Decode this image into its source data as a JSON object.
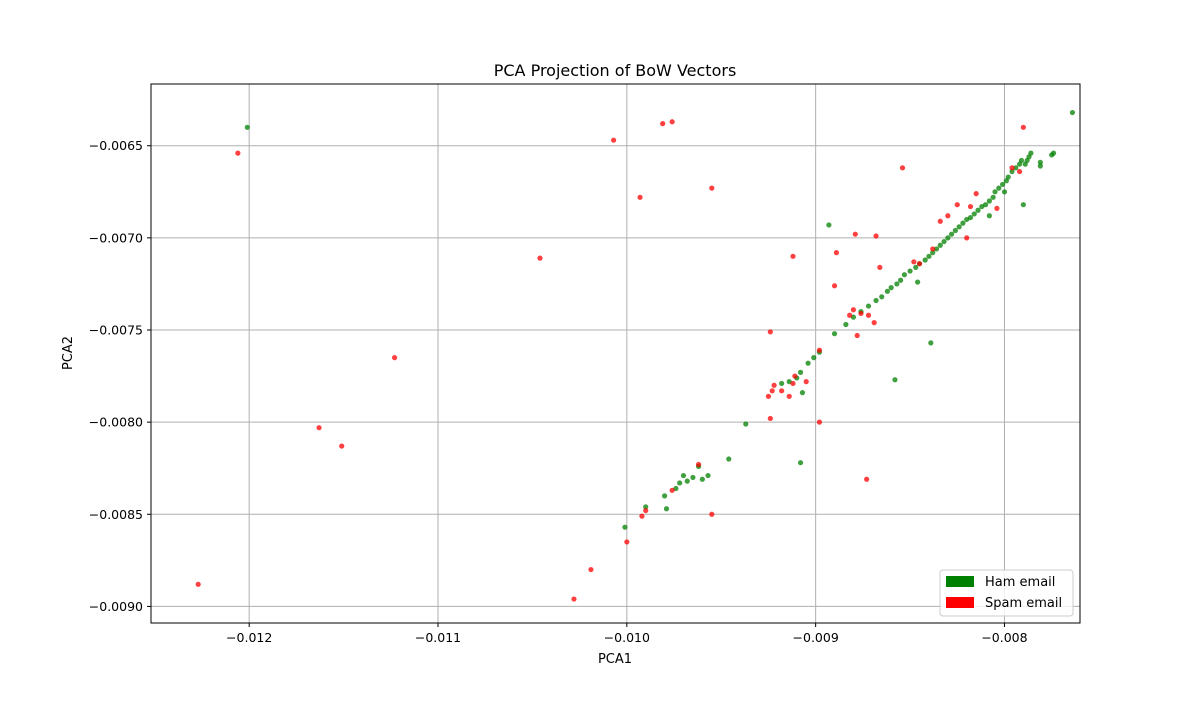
{
  "chart_data": {
    "type": "scatter",
    "title": "PCA Projection of BoW Vectors",
    "xlabel": "PCA1",
    "ylabel": "PCA2",
    "xlim": [
      -0.01252,
      -0.0076
    ],
    "ylim": [
      -0.00909,
      -0.006165
    ],
    "x_ticks": [
      -0.012,
      -0.011,
      -0.01,
      -0.009,
      -0.008
    ],
    "x_tick_labels": [
      "−0.012",
      "−0.011",
      "−0.010",
      "−0.009",
      "−0.008"
    ],
    "y_ticks": [
      -0.009,
      -0.0085,
      -0.008,
      -0.0075,
      -0.007,
      -0.0065
    ],
    "y_tick_labels": [
      "−0.0090",
      "−0.0085",
      "−0.0080",
      "−0.0075",
      "−0.0070",
      "−0.0065"
    ],
    "grid": true,
    "legend": {
      "position": "bottom-right",
      "entries": [
        {
          "label": "Ham email",
          "color": "#008000"
        },
        {
          "label": "Spam email",
          "color": "#ff0000"
        }
      ]
    },
    "series": [
      {
        "name": "Ham email",
        "color": "#008000",
        "points": [
          [
            -0.01201,
            -0.0064
          ],
          [
            -0.00764,
            -0.00632
          ],
          [
            -0.00774,
            -0.00654
          ],
          [
            -0.00775,
            -0.00655
          ],
          [
            -0.00781,
            -0.00659
          ],
          [
            -0.00781,
            -0.00661
          ],
          [
            -0.00786,
            -0.00654
          ],
          [
            -0.00787,
            -0.00656
          ],
          [
            -0.00788,
            -0.00658
          ],
          [
            -0.00789,
            -0.0066
          ],
          [
            -0.00791,
            -0.00658
          ],
          [
            -0.00792,
            -0.0066
          ],
          [
            -0.00794,
            -0.00662
          ],
          [
            -0.00796,
            -0.00664
          ],
          [
            -0.00798,
            -0.00667
          ],
          [
            -0.00799,
            -0.00669
          ],
          [
            -0.00801,
            -0.00671
          ],
          [
            -0.00803,
            -0.00673
          ],
          [
            -0.00805,
            -0.00675
          ],
          [
            -0.00806,
            -0.00678
          ],
          [
            -0.00808,
            -0.0068
          ],
          [
            -0.0081,
            -0.00682
          ],
          [
            -0.00812,
            -0.00683
          ],
          [
            -0.00814,
            -0.00685
          ],
          [
            -0.00816,
            -0.00687
          ],
          [
            -0.00818,
            -0.00689
          ],
          [
            -0.0082,
            -0.0069
          ],
          [
            -0.00822,
            -0.00692
          ],
          [
            -0.00824,
            -0.00694
          ],
          [
            -0.00826,
            -0.00696
          ],
          [
            -0.00828,
            -0.00698
          ],
          [
            -0.0083,
            -0.007
          ],
          [
            -0.00832,
            -0.00702
          ],
          [
            -0.00834,
            -0.00704
          ],
          [
            -0.00836,
            -0.00706
          ],
          [
            -0.00838,
            -0.00708
          ],
          [
            -0.0084,
            -0.0071
          ],
          [
            -0.00842,
            -0.00712
          ],
          [
            -0.00845,
            -0.00714
          ],
          [
            -0.00847,
            -0.00716
          ],
          [
            -0.0085,
            -0.00718
          ],
          [
            -0.00853,
            -0.0072
          ],
          [
            -0.00855,
            -0.00723
          ],
          [
            -0.00857,
            -0.00725
          ],
          [
            -0.0086,
            -0.00727
          ],
          [
            -0.00862,
            -0.00729
          ],
          [
            -0.00865,
            -0.00732
          ],
          [
            -0.00868,
            -0.00734
          ],
          [
            -0.00872,
            -0.00737
          ],
          [
            -0.00876,
            -0.0074
          ],
          [
            -0.0088,
            -0.00743
          ],
          [
            -0.00884,
            -0.00747
          ],
          [
            -0.00893,
            -0.00693
          ],
          [
            -0.00846,
            -0.00724
          ],
          [
            -0.00839,
            -0.00757
          ],
          [
            -0.00858,
            -0.00777
          ],
          [
            -0.0079,
            -0.00682
          ],
          [
            -0.008,
            -0.00675
          ],
          [
            -0.00808,
            -0.00688
          ],
          [
            -0.0089,
            -0.00752
          ],
          [
            -0.00898,
            -0.00762
          ],
          [
            -0.00901,
            -0.00765
          ],
          [
            -0.00904,
            -0.00768
          ],
          [
            -0.00908,
            -0.00773
          ],
          [
            -0.0091,
            -0.00776
          ],
          [
            -0.00914,
            -0.00778
          ],
          [
            -0.00918,
            -0.00779
          ],
          [
            -0.00907,
            -0.00784
          ],
          [
            -0.00908,
            -0.00822
          ],
          [
            -0.00937,
            -0.00801
          ],
          [
            -0.00946,
            -0.0082
          ],
          [
            -0.00957,
            -0.00829
          ],
          [
            -0.0096,
            -0.00831
          ],
          [
            -0.00962,
            -0.00824
          ],
          [
            -0.00965,
            -0.0083
          ],
          [
            -0.00968,
            -0.00832
          ],
          [
            -0.0097,
            -0.00829
          ],
          [
            -0.00972,
            -0.00833
          ],
          [
            -0.00974,
            -0.00836
          ],
          [
            -0.0098,
            -0.0084
          ],
          [
            -0.00979,
            -0.00847
          ],
          [
            -0.0099,
            -0.00846
          ],
          [
            -0.01001,
            -0.00857
          ]
        ]
      },
      {
        "name": "Spam email",
        "color": "#ff0000",
        "points": [
          [
            -0.01227,
            -0.00888
          ],
          [
            -0.01206,
            -0.00654
          ],
          [
            -0.01163,
            -0.00803
          ],
          [
            -0.01151,
            -0.00813
          ],
          [
            -0.01123,
            -0.00765
          ],
          [
            -0.01046,
            -0.00711
          ],
          [
            -0.01007,
            -0.00647
          ],
          [
            -0.00993,
            -0.00678
          ],
          [
            -0.00981,
            -0.00638
          ],
          [
            -0.00976,
            -0.00637
          ],
          [
            -0.00955,
            -0.00673
          ],
          [
            -0.00854,
            -0.00662
          ],
          [
            -0.0079,
            -0.0064
          ],
          [
            -0.00792,
            -0.00664
          ],
          [
            -0.00796,
            -0.00662
          ],
          [
            -0.00804,
            -0.00684
          ],
          [
            -0.00815,
            -0.00676
          ],
          [
            -0.00818,
            -0.00683
          ],
          [
            -0.0082,
            -0.007
          ],
          [
            -0.00825,
            -0.00682
          ],
          [
            -0.0083,
            -0.00688
          ],
          [
            -0.00834,
            -0.00691
          ],
          [
            -0.00838,
            -0.00706
          ],
          [
            -0.00845,
            -0.00714
          ],
          [
            -0.00848,
            -0.00713
          ],
          [
            -0.00868,
            -0.00699
          ],
          [
            -0.00866,
            -0.00716
          ],
          [
            -0.00879,
            -0.00698
          ],
          [
            -0.00889,
            -0.00708
          ],
          [
            -0.0089,
            -0.00726
          ],
          [
            -0.00912,
            -0.0071
          ],
          [
            -0.00869,
            -0.00746
          ],
          [
            -0.00872,
            -0.00742
          ],
          [
            -0.00876,
            -0.00741
          ],
          [
            -0.00878,
            -0.00753
          ],
          [
            -0.0088,
            -0.00739
          ],
          [
            -0.00882,
            -0.00742
          ],
          [
            -0.00924,
            -0.00751
          ],
          [
            -0.00898,
            -0.00761
          ],
          [
            -0.00905,
            -0.00778
          ],
          [
            -0.00911,
            -0.00775
          ],
          [
            -0.00912,
            -0.00779
          ],
          [
            -0.00914,
            -0.00786
          ],
          [
            -0.00918,
            -0.00783
          ],
          [
            -0.00922,
            -0.0078
          ],
          [
            -0.00923,
            -0.00783
          ],
          [
            -0.00925,
            -0.00786
          ],
          [
            -0.00924,
            -0.00798
          ],
          [
            -0.00898,
            -0.008
          ],
          [
            -0.00873,
            -0.00831
          ],
          [
            -0.00955,
            -0.0085
          ],
          [
            -0.00962,
            -0.00823
          ],
          [
            -0.00976,
            -0.00837
          ],
          [
            -0.0099,
            -0.00848
          ],
          [
            -0.00992,
            -0.00851
          ],
          [
            -0.01,
            -0.00865
          ],
          [
            -0.01019,
            -0.0088
          ],
          [
            -0.01028,
            -0.00896
          ]
        ]
      }
    ]
  }
}
